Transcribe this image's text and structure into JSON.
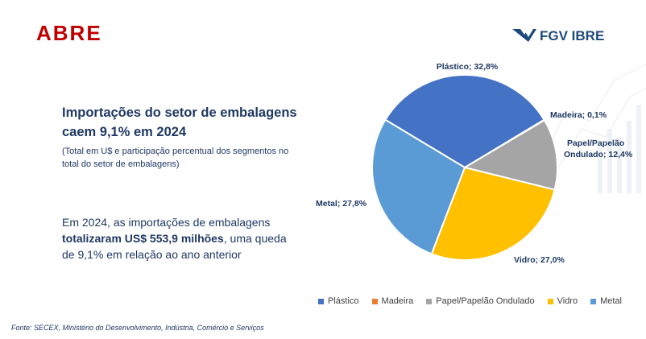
{
  "logos": {
    "left": "ABRE",
    "right": "FGV IBRE"
  },
  "title": "Importações do setor de embalagens caem 9,1% em 2024",
  "subtitle": "(Total em U$ e participação percentual dos segmentos no total do setor de embalagens)",
  "body": {
    "part1": "Em 2024, as importações de embalagens ",
    "bold": "totalizaram US$ 553,9 milhões",
    "part2": ", uma queda de 9,1% em relação ao ano anterior"
  },
  "source": "Fonte: SECEX, Ministério do Desenvolvimento, Indústria, Comércio e Serviços",
  "colors": {
    "title": "#1f3864",
    "abre_red": "#c00000",
    "fgv_blue": "#1f497d"
  },
  "chart_data": {
    "type": "pie",
    "title": "",
    "slices": [
      {
        "name": "Plástico",
        "value": 32.8,
        "label": "Plástico; 32,8%",
        "color": "#4472c4"
      },
      {
        "name": "Madeira",
        "value": 0.1,
        "label": "Madeira; 0,1%",
        "color": "#ed7d31"
      },
      {
        "name": "Papel/Papelão Ondulado",
        "value": 12.4,
        "label": "Papel/Papelão Ondulado; 12,4%",
        "color": "#a5a5a5"
      },
      {
        "name": "Vidro",
        "value": 27.0,
        "label": "Vidro; 27,0%",
        "color": "#ffc000"
      },
      {
        "name": "Metal",
        "value": 27.8,
        "label": "Metal; 27,8%",
        "color": "#5b9bd5"
      }
    ],
    "legend_position": "bottom"
  }
}
